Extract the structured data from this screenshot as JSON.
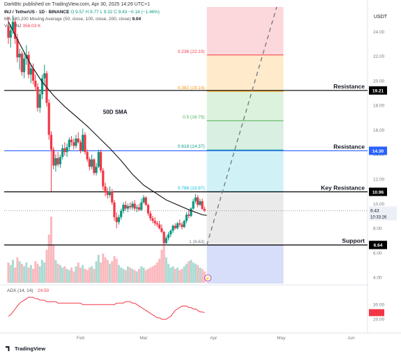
{
  "header": {
    "published": "DarkBtc published on TradingView.com, Apr 30, 2025 14:26 UTC+1",
    "symbol_line": "INJ / TetherUS · 1D · BINANCE",
    "ohlc": "O 9.57  H 9.77  L 9.32  C 9.43  −0.14 (−1.46%)",
    "ma_line": "MA 100,200 Moving Average (50, close, 100, close, 200, close)",
    "ma_value": "9.04",
    "vol_line": "Vol · INJ",
    "vol_value": "356.03 K",
    "currency": "USDT"
  },
  "brand": "TradingView",
  "colors": {
    "up": "#089981",
    "down": "#f23645",
    "sma": "#1e1e1e",
    "adx": "#f23645",
    "black_line": "#000000",
    "blue_line": "#2962ff"
  },
  "chart_data": [
    {
      "type": "candlestick",
      "title": "INJ / TetherUS · 1D · BINANCE",
      "x_tick_labels": [
        "Feb",
        "Mar",
        "Apr",
        "May",
        "Jun"
      ],
      "x_tick_days": [
        32,
        60,
        91,
        121,
        152
      ],
      "y_tick_labels": [
        "4.00",
        "6.00",
        "8.00",
        "10.00",
        "12.00",
        "14.00",
        "16.00",
        "18.00",
        "20.00",
        "22.00",
        "24.00"
      ],
      "ylim": [
        3.5,
        26.0
      ],
      "candles_ohlc": [
        [
          24.4,
          25.2,
          23.0,
          23.5
        ],
        [
          23.5,
          24.6,
          22.7,
          24.1
        ],
        [
          24.1,
          25.3,
          23.8,
          24.8
        ],
        [
          24.8,
          25.1,
          23.0,
          23.4
        ],
        [
          23.4,
          23.8,
          21.5,
          21.9
        ],
        [
          21.9,
          22.6,
          20.9,
          22.2
        ],
        [
          22.2,
          22.4,
          20.4,
          20.7
        ],
        [
          20.7,
          22.3,
          20.2,
          21.8
        ],
        [
          21.8,
          22.9,
          21.3,
          22.1
        ],
        [
          22.1,
          22.4,
          20.2,
          20.5
        ],
        [
          20.5,
          21.4,
          19.8,
          21.0
        ],
        [
          21.0,
          21.4,
          19.7,
          20.0
        ],
        [
          20.0,
          20.5,
          19.2,
          19.5
        ],
        [
          19.5,
          19.8,
          17.5,
          17.8
        ],
        [
          17.8,
          19.3,
          17.4,
          18.9
        ],
        [
          18.9,
          20.5,
          18.5,
          20.2
        ],
        [
          20.2,
          21.3,
          19.6,
          20.6
        ],
        [
          20.6,
          20.8,
          17.9,
          18.2
        ],
        [
          18.2,
          18.5,
          15.2,
          15.6
        ],
        [
          15.6,
          15.9,
          11.0,
          14.4
        ],
        [
          14.4,
          14.6,
          12.8,
          13.1
        ],
        [
          13.1,
          14.0,
          12.6,
          13.7
        ],
        [
          13.7,
          14.2,
          13.0,
          13.2
        ],
        [
          13.2,
          14.0,
          12.9,
          13.8
        ],
        [
          13.8,
          14.8,
          13.6,
          14.5
        ],
        [
          14.5,
          15.0,
          13.9,
          14.2
        ],
        [
          14.2,
          14.9,
          13.8,
          14.6
        ],
        [
          14.6,
          15.4,
          14.3,
          15.2
        ],
        [
          15.2,
          15.5,
          14.7,
          15.0
        ],
        [
          15.0,
          15.3,
          14.4,
          14.7
        ],
        [
          14.7,
          15.6,
          14.5,
          15.3
        ],
        [
          15.3,
          15.8,
          14.9,
          15.0
        ],
        [
          15.0,
          15.2,
          14.1,
          14.3
        ],
        [
          14.3,
          16.1,
          14.2,
          15.6
        ],
        [
          15.6,
          15.8,
          14.0,
          14.2
        ],
        [
          14.2,
          14.4,
          13.4,
          13.6
        ],
        [
          13.6,
          13.8,
          12.7,
          13.0
        ],
        [
          13.0,
          14.0,
          12.8,
          13.6
        ],
        [
          13.6,
          13.7,
          12.3,
          12.5
        ],
        [
          12.5,
          13.3,
          12.3,
          13.0
        ],
        [
          13.0,
          14.4,
          12.9,
          14.2
        ],
        [
          14.2,
          14.4,
          12.5,
          12.7
        ],
        [
          12.7,
          12.9,
          11.1,
          11.4
        ],
        [
          11.4,
          11.7,
          10.6,
          10.9
        ],
        [
          10.9,
          11.3,
          10.4,
          10.7
        ],
        [
          10.7,
          11.4,
          10.5,
          11.0
        ],
        [
          11.0,
          11.2,
          9.9,
          10.1
        ],
        [
          10.1,
          10.3,
          8.6,
          8.9
        ],
        [
          8.9,
          9.3,
          8.0,
          8.5
        ],
        [
          8.5,
          9.1,
          8.3,
          8.9
        ],
        [
          8.9,
          9.6,
          8.7,
          9.4
        ],
        [
          9.4,
          10.1,
          9.2,
          9.9
        ],
        [
          9.9,
          10.2,
          9.4,
          9.6
        ],
        [
          9.6,
          10.0,
          9.3,
          9.8
        ],
        [
          9.8,
          10.1,
          9.5,
          9.7
        ],
        [
          9.7,
          10.2,
          9.5,
          10.0
        ],
        [
          10.0,
          10.3,
          9.4,
          9.6
        ],
        [
          9.6,
          9.9,
          9.3,
          9.7
        ],
        [
          9.7,
          10.0,
          9.4,
          9.5
        ],
        [
          9.5,
          10.4,
          9.4,
          10.1
        ],
        [
          10.1,
          10.7,
          10.0,
          10.5
        ],
        [
          10.5,
          10.6,
          9.8,
          9.9
        ],
        [
          9.9,
          10.0,
          9.0,
          9.2
        ],
        [
          9.2,
          9.4,
          8.6,
          8.8
        ],
        [
          8.8,
          9.0,
          8.4,
          8.6
        ],
        [
          8.6,
          8.9,
          8.2,
          8.4
        ],
        [
          8.4,
          8.6,
          8.1,
          8.3
        ],
        [
          8.3,
          8.6,
          7.9,
          8.0
        ],
        [
          8.0,
          8.3,
          7.6,
          7.7
        ],
        [
          7.7,
          7.8,
          6.6,
          6.8
        ],
        [
          6.8,
          7.4,
          6.6,
          7.2
        ],
        [
          7.2,
          7.7,
          7.0,
          7.5
        ],
        [
          7.5,
          7.9,
          7.3,
          7.8
        ],
        [
          7.8,
          8.3,
          7.6,
          8.2
        ],
        [
          8.2,
          8.4,
          7.9,
          8.0
        ],
        [
          8.0,
          8.5,
          7.9,
          8.4
        ],
        [
          8.4,
          8.7,
          8.1,
          8.3
        ],
        [
          8.3,
          8.5,
          7.9,
          8.1
        ],
        [
          8.1,
          8.7,
          8.0,
          8.6
        ],
        [
          8.6,
          9.3,
          8.4,
          9.1
        ],
        [
          9.1,
          9.5,
          8.8,
          9.0
        ],
        [
          9.0,
          9.7,
          8.9,
          9.6
        ],
        [
          9.6,
          10.4,
          9.5,
          10.2
        ],
        [
          10.2,
          10.8,
          10.0,
          10.5
        ],
        [
          10.5,
          10.7,
          9.7,
          9.9
        ],
        [
          9.9,
          10.4,
          9.8,
          10.2
        ],
        [
          10.2,
          10.4,
          9.5,
          9.57
        ],
        [
          9.57,
          9.77,
          9.32,
          9.43
        ]
      ],
      "sma_50": [
        [
          0,
          24.8
        ],
        [
          5,
          23.0
        ],
        [
          10,
          21.3
        ],
        [
          15,
          19.9
        ],
        [
          20,
          18.8
        ],
        [
          25,
          17.9
        ],
        [
          30,
          17.1
        ],
        [
          35,
          16.3
        ],
        [
          40,
          15.4
        ],
        [
          45,
          14.5
        ],
        [
          50,
          13.5
        ],
        [
          55,
          12.4
        ],
        [
          60,
          11.5
        ],
        [
          65,
          10.9
        ],
        [
          70,
          10.3
        ],
        [
          75,
          9.9
        ],
        [
          80,
          9.5
        ],
        [
          83,
          9.3
        ],
        [
          86,
          9.1
        ],
        [
          88,
          9.04
        ]
      ],
      "volume": [
        160,
        140,
        180,
        120,
        200,
        170,
        150,
        130,
        160,
        120,
        140,
        110,
        170,
        150,
        130,
        180,
        160,
        260,
        380,
        520,
        300,
        180,
        150,
        140,
        120,
        130,
        110,
        100,
        120,
        90,
        130,
        160,
        120,
        140,
        110,
        100,
        120,
        130,
        110,
        170,
        220,
        160,
        230,
        200,
        180,
        150,
        170,
        210,
        190,
        140,
        120,
        110,
        100,
        130,
        120,
        110,
        100,
        90,
        110,
        130,
        120,
        100,
        110,
        120,
        130,
        140,
        160,
        190,
        260,
        340,
        200,
        150,
        120,
        130,
        110,
        120,
        100,
        110,
        130,
        150,
        170,
        180,
        160,
        150,
        140,
        120,
        110,
        90
      ],
      "adx_14_14": [
        22,
        23,
        25,
        27,
        29,
        31,
        32,
        33,
        34,
        35,
        35,
        35,
        34,
        34,
        33,
        33,
        33,
        32,
        32,
        32,
        32,
        32,
        31,
        31,
        31,
        31,
        31,
        31,
        31,
        31,
        31,
        31,
        31,
        30,
        30,
        30,
        30,
        30,
        30,
        30,
        30,
        30,
        30,
        30,
        30,
        30,
        30,
        30,
        31,
        31,
        31,
        31,
        32,
        32,
        32,
        31,
        31,
        30,
        29,
        28,
        27,
        26,
        25,
        24,
        23,
        22,
        21,
        21,
        20,
        20,
        20,
        21,
        22,
        24,
        26,
        27,
        28,
        29,
        29,
        29,
        28,
        28,
        27,
        27,
        26,
        25,
        25,
        24.5
      ],
      "adx_ticks": [
        "20.00",
        "30.00"
      ],
      "adx_label": "ADX (14, 14)",
      "adx_value": "24.50",
      "sma_label": "50D SMA",
      "last_price": "9.43",
      "countdown": "10:33:26",
      "fib_levels": [
        {
          "label": "0.236 (22.10)",
          "value": 22.1,
          "color": "#f23645"
        },
        {
          "label": "0.382 (19.14)",
          "value": 19.14,
          "color": "#ff9800"
        },
        {
          "label": "0.5 (16.75)",
          "value": 16.75,
          "color": "#4caf50"
        },
        {
          "label": "0.618 (14.37)",
          "value": 14.37,
          "color": "#089981"
        },
        {
          "label": "0.786 (10.97)",
          "value": 10.97,
          "color": "#00bcd4"
        },
        {
          "label": "1 (6.63)",
          "value": 6.63,
          "color": "#787b86"
        }
      ],
      "fib_zones": [
        {
          "from": 22.1,
          "to": 26.0,
          "color": "#fbd0d5"
        },
        {
          "from": 19.14,
          "to": 22.1,
          "color": "#ffe8c2"
        },
        {
          "from": 16.75,
          "to": 19.14,
          "color": "#d6f0d6"
        },
        {
          "from": 14.37,
          "to": 16.75,
          "color": "#d2ecdc"
        },
        {
          "from": 10.97,
          "to": 14.37,
          "color": "#c8f0f4"
        },
        {
          "from": 6.63,
          "to": 10.97,
          "color": "#e6e6e6"
        },
        {
          "from": 3.5,
          "to": 6.63,
          "color": "#d0d8f8"
        }
      ],
      "levels": [
        {
          "label": "Resistance",
          "value": 19.21,
          "tag": "19.21",
          "color": "#000000"
        },
        {
          "label": "Resistance",
          "value": 14.3,
          "tag": "14.30",
          "color": "#2962ff"
        },
        {
          "label": "Key Resistance",
          "value": 10.96,
          "tag": "10.96",
          "color": "#000000"
        },
        {
          "label": "Support",
          "value": 6.64,
          "tag": "6.64",
          "color": "#000000"
        }
      ],
      "dashed_projection": [
        [
          88,
          6.63
        ],
        [
          119,
          26.0
        ]
      ]
    }
  ]
}
